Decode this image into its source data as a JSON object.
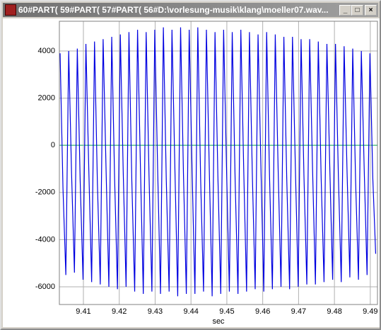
{
  "window": {
    "title": "60#PART( 59#PART( 57#PART( 56#D:\\vorlesung-musik\\klang\\moeller07.wav..."
  },
  "chart_data": {
    "type": "line",
    "xlabel": "sec",
    "grid": true,
    "zero_line_color": "#00a050",
    "xlim": [
      9.4033,
      9.492
    ],
    "ylim": [
      -6750,
      5260
    ],
    "xticks": [
      9.41,
      9.42,
      9.43,
      9.44,
      9.45,
      9.46,
      9.47,
      9.48,
      9.49
    ],
    "yticks": [
      4000,
      2000,
      0,
      -2000,
      -4000,
      -6000
    ],
    "series": [
      {
        "color": "#0000e0",
        "x": [
          9.4035,
          9.4043,
          9.4051,
          9.4059,
          9.4067,
          9.4075,
          9.4083,
          9.4091,
          9.4099,
          9.4107,
          9.4115,
          9.4123,
          9.4131,
          9.4139,
          9.4147,
          9.4155,
          9.4163,
          9.4171,
          9.4179,
          9.4187,
          9.4195,
          9.4203,
          9.4211,
          9.4219,
          9.4227,
          9.4235,
          9.4243,
          9.4251,
          9.4259,
          9.4267,
          9.4275,
          9.4283,
          9.4291,
          9.4299,
          9.4307,
          9.4315,
          9.4323,
          9.4331,
          9.4339,
          9.4347,
          9.4355,
          9.4363,
          9.4371,
          9.4379,
          9.4387,
          9.4395,
          9.4403,
          9.4411,
          9.4419,
          9.4427,
          9.4435,
          9.4443,
          9.4451,
          9.4459,
          9.4467,
          9.4475,
          9.4483,
          9.4491,
          9.4499,
          9.4507,
          9.4515,
          9.4523,
          9.4531,
          9.4539,
          9.4547,
          9.4555,
          9.4563,
          9.4571,
          9.4579,
          9.4587,
          9.4595,
          9.4603,
          9.4611,
          9.4619,
          9.4627,
          9.4635,
          9.4643,
          9.4651,
          9.4659,
          9.4667,
          9.4675,
          9.4683,
          9.4691,
          9.4699,
          9.4707,
          9.4715,
          9.4723,
          9.4731,
          9.4739,
          9.4747,
          9.4755,
          9.4763,
          9.4771,
          9.4779,
          9.4787,
          9.4795,
          9.4803,
          9.4811,
          9.4819,
          9.4827,
          9.4835,
          9.4843,
          9.4851,
          9.4859,
          9.4867,
          9.4875,
          9.4883,
          9.4891,
          9.4899,
          9.4907,
          9.4915
        ],
        "values": [
          3900,
          -1800,
          -5500,
          4000,
          -1200,
          -5400,
          4100,
          -1500,
          -5700,
          4300,
          -1000,
          -5800,
          4400,
          -1600,
          -5900,
          4500,
          -900,
          -6000,
          4600,
          -1400,
          -6100,
          4700,
          -1100,
          -6000,
          4800,
          -1500,
          -6200,
          4900,
          -900,
          -6300,
          4800,
          -1300,
          -6200,
          4900,
          -1000,
          -6300,
          5000,
          -1400,
          -6200,
          4900,
          -900,
          -6400,
          5000,
          -1200,
          -6300,
          4900,
          -1000,
          -6300,
          5000,
          -1500,
          -6200,
          4900,
          -1000,
          -6400,
          4800,
          -1300,
          -6300,
          4900,
          -900,
          -6200,
          4800,
          -1400,
          -6300,
          4900,
          -1000,
          -6200,
          4800,
          -1200,
          -6100,
          4700,
          -900,
          -6200,
          4800,
          -1300,
          -6100,
          4700,
          -1000,
          -6000,
          4600,
          -1400,
          -6100,
          4600,
          -900,
          -6000,
          4500,
          -1300,
          -5900,
          4500,
          -1000,
          -5900,
          4400,
          -1400,
          -5800,
          4300,
          -900,
          -5700,
          4300,
          -1300,
          -5800,
          4200,
          -1000,
          -5600,
          4100,
          -1500,
          -5700,
          4000,
          -1000,
          -5500,
          3900,
          -1400,
          -4600
        ]
      }
    ]
  }
}
